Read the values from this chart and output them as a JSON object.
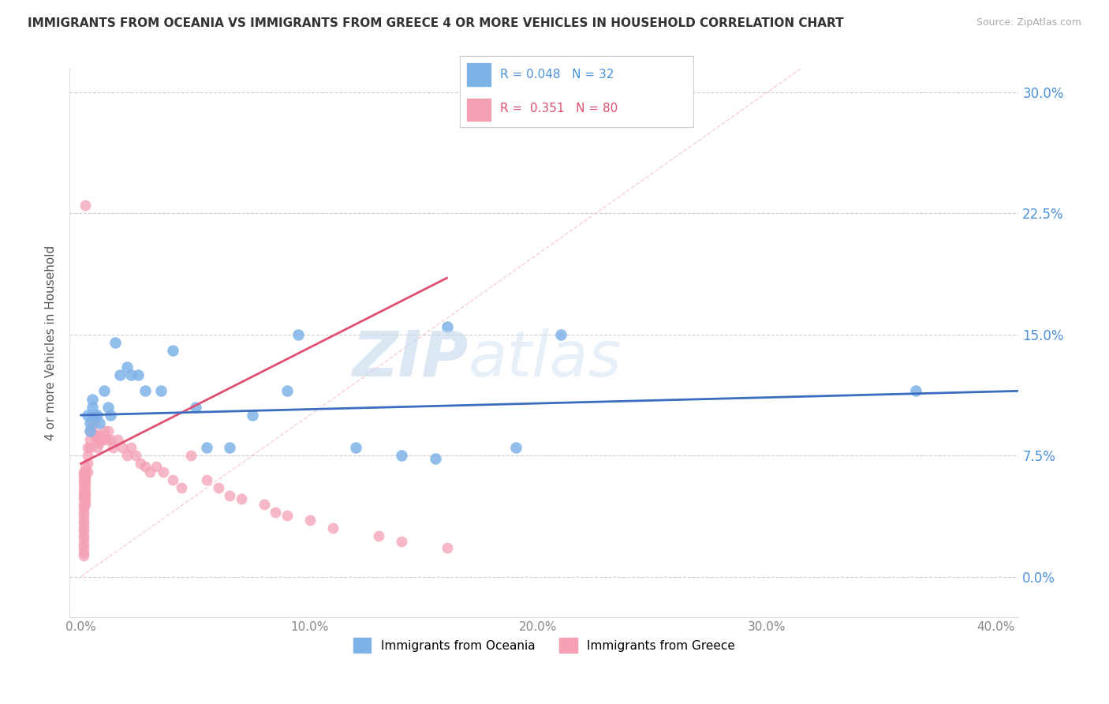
{
  "title": "IMMIGRANTS FROM OCEANIA VS IMMIGRANTS FROM GREECE 4 OR MORE VEHICLES IN HOUSEHOLD CORRELATION CHART",
  "source": "Source: ZipAtlas.com",
  "xlabel_ticks": [
    "0.0%",
    "10.0%",
    "20.0%",
    "30.0%",
    "40.0%"
  ],
  "xlabel_tick_vals": [
    0.0,
    0.1,
    0.2,
    0.3,
    0.4
  ],
  "ylabel": "4 or more Vehicles in Household",
  "ylabel_ticks": [
    "0.0%",
    "7.5%",
    "15.0%",
    "22.5%",
    "30.0%"
  ],
  "ylabel_tick_vals": [
    0.0,
    0.075,
    0.15,
    0.225,
    0.3
  ],
  "xlim": [
    -0.005,
    0.41
  ],
  "ylim": [
    -0.025,
    0.315
  ],
  "legend1_label": "Immigrants from Oceania",
  "legend2_label": "Immigrants from Greece",
  "R_oceania": 0.048,
  "N_oceania": 32,
  "R_greece": 0.351,
  "N_greece": 80,
  "color_oceania": "#7EB3E8",
  "color_greece": "#F4A0B5",
  "line_color_oceania": "#3B6DBF",
  "line_color_greece": "#E05070",
  "diagonal_color": "#F4A0B5",
  "background_color": "#FFFFFF",
  "watermark_zip": "ZIP",
  "watermark_atlas": "atlas",
  "oceania_x": [
    0.003,
    0.004,
    0.004,
    0.005,
    0.005,
    0.006,
    0.007,
    0.008,
    0.01,
    0.012,
    0.013,
    0.015,
    0.017,
    0.02,
    0.022,
    0.025,
    0.028,
    0.035,
    0.04,
    0.05,
    0.055,
    0.065,
    0.075,
    0.09,
    0.095,
    0.12,
    0.14,
    0.155,
    0.16,
    0.19,
    0.21,
    0.365
  ],
  "oceania_y": [
    0.1,
    0.095,
    0.09,
    0.11,
    0.105,
    0.1,
    0.1,
    0.095,
    0.115,
    0.105,
    0.1,
    0.145,
    0.125,
    0.13,
    0.125,
    0.125,
    0.115,
    0.115,
    0.14,
    0.105,
    0.08,
    0.08,
    0.1,
    0.115,
    0.15,
    0.08,
    0.075,
    0.073,
    0.155,
    0.08,
    0.15,
    0.115
  ],
  "greece_x": [
    0.001,
    0.001,
    0.001,
    0.001,
    0.001,
    0.001,
    0.001,
    0.001,
    0.001,
    0.001,
    0.001,
    0.001,
    0.001,
    0.001,
    0.001,
    0.001,
    0.001,
    0.001,
    0.001,
    0.001,
    0.001,
    0.001,
    0.002,
    0.002,
    0.002,
    0.002,
    0.002,
    0.002,
    0.002,
    0.002,
    0.002,
    0.002,
    0.003,
    0.003,
    0.003,
    0.003,
    0.004,
    0.004,
    0.004,
    0.005,
    0.005,
    0.005,
    0.006,
    0.006,
    0.007,
    0.007,
    0.008,
    0.008,
    0.009,
    0.01,
    0.011,
    0.012,
    0.013,
    0.014,
    0.016,
    0.018,
    0.02,
    0.022,
    0.024,
    0.026,
    0.028,
    0.03,
    0.033,
    0.036,
    0.04,
    0.044,
    0.048,
    0.055,
    0.06,
    0.065,
    0.07,
    0.08,
    0.085,
    0.09,
    0.1,
    0.11,
    0.13,
    0.14,
    0.16,
    0.002
  ],
  "greece_y": [
    0.065,
    0.063,
    0.06,
    0.058,
    0.055,
    0.052,
    0.05,
    0.048,
    0.045,
    0.043,
    0.04,
    0.038,
    0.035,
    0.033,
    0.03,
    0.028,
    0.025,
    0.023,
    0.02,
    0.018,
    0.015,
    0.013,
    0.068,
    0.065,
    0.062,
    0.06,
    0.058,
    0.055,
    0.052,
    0.05,
    0.047,
    0.045,
    0.08,
    0.075,
    0.07,
    0.065,
    0.09,
    0.085,
    0.08,
    0.1,
    0.095,
    0.09,
    0.095,
    0.088,
    0.085,
    0.08,
    0.088,
    0.083,
    0.085,
    0.09,
    0.085,
    0.09,
    0.085,
    0.08,
    0.085,
    0.08,
    0.075,
    0.08,
    0.075,
    0.07,
    0.068,
    0.065,
    0.068,
    0.065,
    0.06,
    0.055,
    0.075,
    0.06,
    0.055,
    0.05,
    0.048,
    0.045,
    0.04,
    0.038,
    0.035,
    0.03,
    0.025,
    0.022,
    0.018,
    0.23
  ]
}
